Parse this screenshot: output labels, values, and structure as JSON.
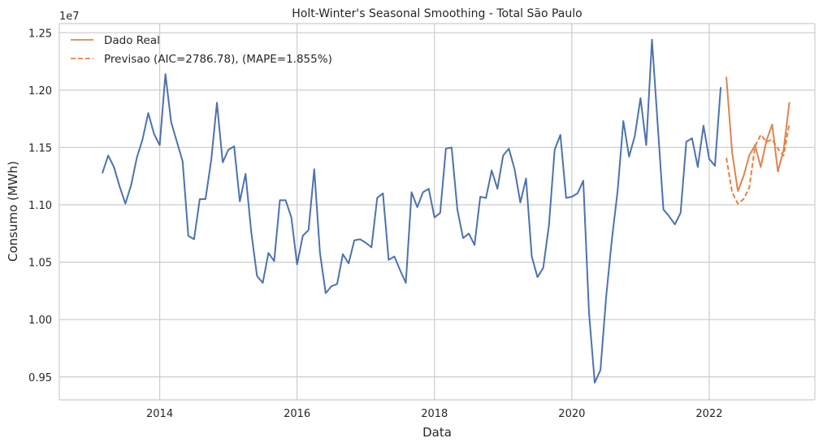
{
  "chart_data": {
    "type": "line",
    "title": "Holt-Winter's Seasonal Smoothing - Total São Paulo",
    "xlabel": "Data",
    "ylabel": "Consumo (MWh)",
    "y_offset_label": "1e7",
    "y_scale": 10000000,
    "xlim": [
      "2012-07-15",
      "2023-07-15"
    ],
    "ylim": [
      0.93,
      1.258
    ],
    "x_ticks": [
      "2014",
      "2016",
      "2018",
      "2020",
      "2022"
    ],
    "y_ticks": [
      "0.95",
      "1.00",
      "1.05",
      "1.10",
      "1.15",
      "1.20",
      "1.25"
    ],
    "grid": true,
    "legend_position": "top-left",
    "series": [
      {
        "name": "",
        "color": "#4c72b0",
        "style": "solid",
        "x": [
          "2013-03",
          "2013-04",
          "2013-05",
          "2013-06",
          "2013-07",
          "2013-08",
          "2013-09",
          "2013-10",
          "2013-11",
          "2013-12",
          "2014-01",
          "2014-02",
          "2014-03",
          "2014-04",
          "2014-05",
          "2014-06",
          "2014-07",
          "2014-08",
          "2014-09",
          "2014-10",
          "2014-11",
          "2014-12",
          "2015-01",
          "2015-02",
          "2015-03",
          "2015-04",
          "2015-05",
          "2015-06",
          "2015-07",
          "2015-08",
          "2015-09",
          "2015-10",
          "2015-11",
          "2015-12",
          "2016-01",
          "2016-02",
          "2016-03",
          "2016-04",
          "2016-05",
          "2016-06",
          "2016-07",
          "2016-08",
          "2016-09",
          "2016-10",
          "2016-11",
          "2016-12",
          "2017-01",
          "2017-02",
          "2017-03",
          "2017-04",
          "2017-05",
          "2017-06",
          "2017-07",
          "2017-08",
          "2017-09",
          "2017-10",
          "2017-11",
          "2017-12",
          "2018-01",
          "2018-02",
          "2018-03",
          "2018-04",
          "2018-05",
          "2018-06",
          "2018-07",
          "2018-08",
          "2018-09",
          "2018-10",
          "2018-11",
          "2018-12",
          "2019-01",
          "2019-02",
          "2019-03",
          "2019-04",
          "2019-05",
          "2019-06",
          "2019-07",
          "2019-08",
          "2019-09",
          "2019-10",
          "2019-11",
          "2019-12",
          "2020-01",
          "2020-02",
          "2020-03",
          "2020-04",
          "2020-05",
          "2020-06",
          "2020-07",
          "2020-08",
          "2020-09",
          "2020-10",
          "2020-11",
          "2020-12",
          "2021-01",
          "2021-02",
          "2021-03",
          "2021-04",
          "2021-05",
          "2021-06",
          "2021-07",
          "2021-08",
          "2021-09",
          "2021-10",
          "2021-11",
          "2021-12",
          "2022-01",
          "2022-02",
          "2022-03"
        ],
        "y": [
          1.128,
          1.143,
          1.133,
          1.116,
          1.101,
          1.117,
          1.141,
          1.157,
          1.18,
          1.162,
          1.152,
          1.214,
          1.172,
          1.155,
          1.138,
          1.073,
          1.07,
          1.105,
          1.105,
          1.139,
          1.189,
          1.137,
          1.148,
          1.151,
          1.103,
          1.127,
          1.076,
          1.038,
          1.032,
          1.058,
          1.051,
          1.104,
          1.104,
          1.089,
          1.048,
          1.073,
          1.078,
          1.131,
          1.058,
          1.023,
          1.029,
          1.031,
          1.057,
          1.049,
          1.069,
          1.07,
          1.067,
          1.063,
          1.106,
          1.11,
          1.052,
          1.055,
          1.043,
          1.032,
          1.111,
          1.098,
          1.111,
          1.114,
          1.089,
          1.093,
          1.149,
          1.15,
          1.096,
          1.071,
          1.075,
          1.065,
          1.107,
          1.106,
          1.13,
          1.114,
          1.143,
          1.149,
          1.131,
          1.102,
          1.123,
          1.055,
          1.037,
          1.045,
          1.082,
          1.148,
          1.161,
          1.106,
          1.107,
          1.11,
          1.121,
          1.006,
          0.945,
          0.956,
          1.02,
          1.07,
          1.112,
          1.173,
          1.142,
          1.16,
          1.193,
          1.152,
          1.244,
          1.17,
          1.096,
          1.09,
          1.083,
          1.093,
          1.155,
          1.158,
          1.133,
          1.169,
          1.14,
          1.134,
          1.202
        ]
      },
      {
        "name": "Dado Real",
        "color": "#dd8452",
        "style": "solid",
        "x": [
          "2022-04",
          "2022-05",
          "2022-06",
          "2022-07",
          "2022-08",
          "2022-09",
          "2022-10",
          "2022-11",
          "2022-12",
          "2023-01",
          "2023-02",
          "2023-03"
        ],
        "y": [
          1.211,
          1.146,
          1.112,
          1.125,
          1.143,
          1.152,
          1.133,
          1.156,
          1.17,
          1.129,
          1.148,
          1.189
        ]
      },
      {
        "name": "Previsao (AIC=2786.78), (MAPE=1.855%)",
        "color": "#f07e3a",
        "style": "dashed",
        "x": [
          "2022-04",
          "2022-05",
          "2022-06",
          "2022-07",
          "2022-08",
          "2022-09",
          "2022-10",
          "2022-11",
          "2022-12",
          "2023-01",
          "2023-02",
          "2023-03"
        ],
        "y": [
          1.141,
          1.111,
          1.101,
          1.105,
          1.115,
          1.151,
          1.161,
          1.155,
          1.157,
          1.149,
          1.143,
          1.171
        ]
      }
    ]
  }
}
